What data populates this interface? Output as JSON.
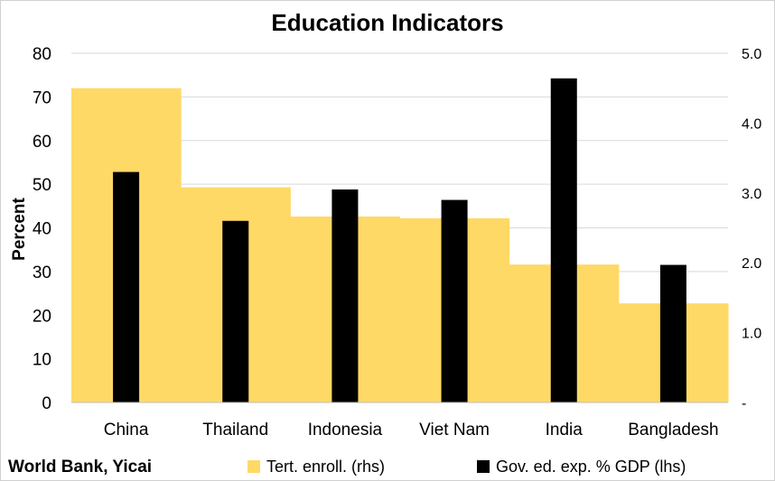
{
  "chart_data": {
    "type": "bar",
    "title": "Education Indicators",
    "ylabel": "Percent",
    "ylim": [
      0,
      80
    ],
    "y2lim": [
      0,
      5
    ],
    "yticks": [
      "0",
      "10",
      "20",
      "30",
      "40",
      "50",
      "60",
      "70",
      "80"
    ],
    "y2ticks": [
      "-",
      "1.0",
      "2.0",
      "3.0",
      "4.0",
      "5.0"
    ],
    "categories": [
      "China",
      "Thailand",
      "Indonesia",
      "Viet Nam",
      "India",
      "Bangladesh"
    ],
    "series": [
      {
        "name": "Tert. enroll. (rhs)",
        "axis": "left",
        "style": "area-step",
        "color": "#FFD966",
        "values": [
          72,
          49.3,
          42.6,
          42.2,
          31.6,
          22.7
        ]
      },
      {
        "name": "Gov. ed. exp. % GDP (lhs)",
        "axis": "right",
        "style": "bar",
        "color": "#000000",
        "values": [
          3.3,
          2.6,
          3.05,
          2.9,
          4.64,
          1.97
        ]
      }
    ],
    "grid": "horizontal",
    "legend": "bottom"
  },
  "source": "World Bank, Yicai"
}
